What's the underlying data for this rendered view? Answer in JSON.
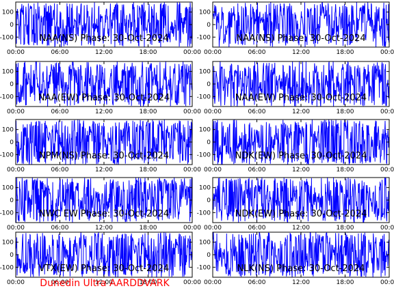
{
  "footer": {
    "text": "Dunedin Ultra AARDDVARK",
    "color": "#ff0000"
  },
  "colors": {
    "trace": "#0000ff",
    "axes": "#000000",
    "background": "#ffffff"
  },
  "chart_data": [
    {
      "type": "line",
      "title": "NAA(NS) Phase: 30-Oct-2024",
      "x_ticks": [
        "00:00",
        "06:00",
        "12:00",
        "18:00",
        "00:00"
      ],
      "y_ticks": [
        "100",
        "0",
        "-100"
      ],
      "xlim": [
        0,
        24
      ],
      "ylim": [
        -180,
        180
      ],
      "series": [
        {
          "values_description": "dense phase trace",
          "seed": 11
        }
      ]
    },
    {
      "type": "line",
      "title": "NAA(NS) Phase: 30-Oct-2024",
      "x_ticks": [
        "00:00",
        "06:00",
        "12:00",
        "18:00",
        "00:00"
      ],
      "y_ticks": [
        "100",
        "0",
        "-100"
      ],
      "xlim": [
        0,
        24
      ],
      "ylim": [
        -180,
        180
      ],
      "series": [
        {
          "values_description": "dense phase trace",
          "seed": 23
        }
      ]
    },
    {
      "type": "line",
      "title": "NAA(EW) Phase: 30-Oct-2024",
      "x_ticks": [
        "00:00",
        "06:00",
        "12:00",
        "18:00",
        "00:00"
      ],
      "y_ticks": [
        "100",
        "0",
        "-100"
      ],
      "xlim": [
        0,
        24
      ],
      "ylim": [
        -180,
        180
      ],
      "series": [
        {
          "values_description": "dense phase trace",
          "seed": 37
        }
      ]
    },
    {
      "type": "line",
      "title": "NAA(EW) Phase: 30-Oct-2024",
      "x_ticks": [
        "00:00",
        "06:00",
        "12:00",
        "18:00",
        "00:00"
      ],
      "y_ticks": [
        "100",
        "0",
        "-100"
      ],
      "xlim": [
        0,
        24
      ],
      "ylim": [
        -180,
        180
      ],
      "series": [
        {
          "values_description": "dense phase trace",
          "seed": 41
        }
      ]
    },
    {
      "type": "line",
      "title": "NPM(NS) Phase: 30-Oct-2024",
      "x_ticks": [
        "00:00",
        "06:00",
        "12:00",
        "18:00",
        "00:00"
      ],
      "y_ticks": [
        "100",
        "0",
        "-100"
      ],
      "xlim": [
        0,
        24
      ],
      "ylim": [
        -180,
        180
      ],
      "series": [
        {
          "values_description": "dense phase trace",
          "seed": 53
        }
      ]
    },
    {
      "type": "line",
      "title": "NDK(EW) Phase: 30-Oct-2024",
      "x_ticks": [
        "00:00",
        "06:00",
        "12:00",
        "18:00",
        "00:00"
      ],
      "y_ticks": [
        "100",
        "0",
        "-100"
      ],
      "xlim": [
        0,
        24
      ],
      "ylim": [
        -180,
        180
      ],
      "series": [
        {
          "values_description": "dense phase trace",
          "seed": 67
        }
      ]
    },
    {
      "type": "line",
      "title": "NWC EW Phase: 30-Oct-2024",
      "x_ticks": [
        "00:00",
        "06:00",
        "12:00",
        "18:00",
        "00:00"
      ],
      "y_ticks": [
        "100",
        "0",
        "-100"
      ],
      "xlim": [
        0,
        24
      ],
      "ylim": [
        -180,
        180
      ],
      "series": [
        {
          "values_description": "dense phase trace",
          "seed": 71
        }
      ]
    },
    {
      "type": "line",
      "title": "NDK(EW) Phase: 30-Oct-2024",
      "x_ticks": [
        "00:00",
        "06:00",
        "12:00",
        "18:00",
        "00:00"
      ],
      "y_ticks": [
        "100",
        "0",
        "-100"
      ],
      "xlim": [
        0,
        24
      ],
      "ylim": [
        -180,
        180
      ],
      "series": [
        {
          "values_description": "dense phase trace",
          "seed": 83
        }
      ]
    },
    {
      "type": "line",
      "title": "VTX(EW) Phase: 30-Oct-2024",
      "x_ticks": [
        "00:00",
        "06:00",
        "12:00",
        "18:00",
        "00:00"
      ],
      "y_ticks": [
        "100",
        "0",
        "-100"
      ],
      "xlim": [
        0,
        24
      ],
      "ylim": [
        -180,
        180
      ],
      "series": [
        {
          "values_description": "dense phase trace",
          "seed": 97
        }
      ]
    },
    {
      "type": "line",
      "title": "NLK(NS) Phase: 30-Oct-2024",
      "x_ticks": [
        "00:00",
        "06:00",
        "12:00",
        "18:00",
        "00:00"
      ],
      "y_ticks": [
        "100",
        "0",
        "-100"
      ],
      "xlim": [
        0,
        24
      ],
      "ylim": [
        -180,
        180
      ],
      "series": [
        {
          "values_description": "dense phase trace",
          "seed": 101
        }
      ]
    }
  ]
}
